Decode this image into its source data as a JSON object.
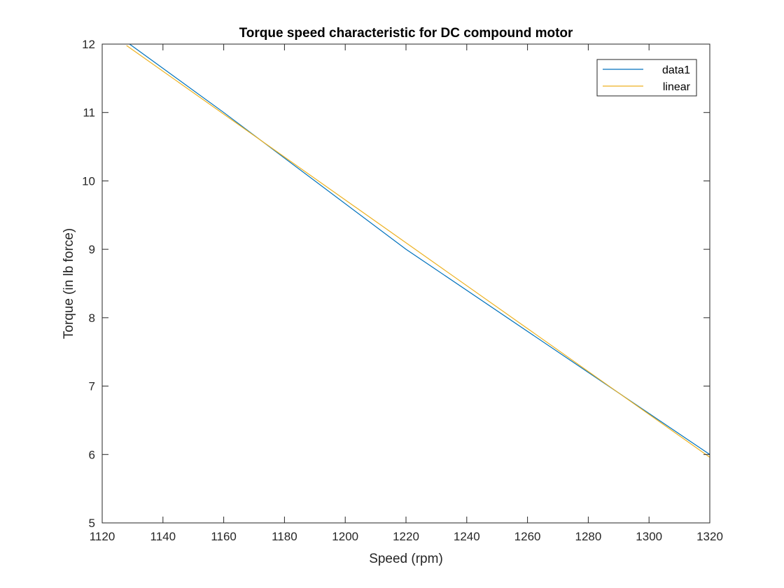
{
  "chart_data": {
    "type": "line",
    "title": "Torque speed characteristic for DC compound motor",
    "xlabel": "Speed (rpm)",
    "ylabel": "Torque (in lb force)",
    "xlim": [
      1120,
      1320
    ],
    "ylim": [
      5,
      12
    ],
    "xticks": [
      1120,
      1140,
      1160,
      1180,
      1200,
      1220,
      1240,
      1260,
      1280,
      1300,
      1320
    ],
    "yticks": [
      5,
      6,
      7,
      8,
      9,
      10,
      11,
      12
    ],
    "grid": false,
    "legend_position": "top-right",
    "series": [
      {
        "name": "data1",
        "color": "#0072BD",
        "x": [
          1129,
          1160,
          1220,
          1320
        ],
        "y": [
          12,
          11,
          9,
          6
        ]
      },
      {
        "name": "linear",
        "color": "#EDB120",
        "x": [
          1128,
          1320
        ],
        "y": [
          11.98,
          5.96
        ]
      }
    ]
  }
}
